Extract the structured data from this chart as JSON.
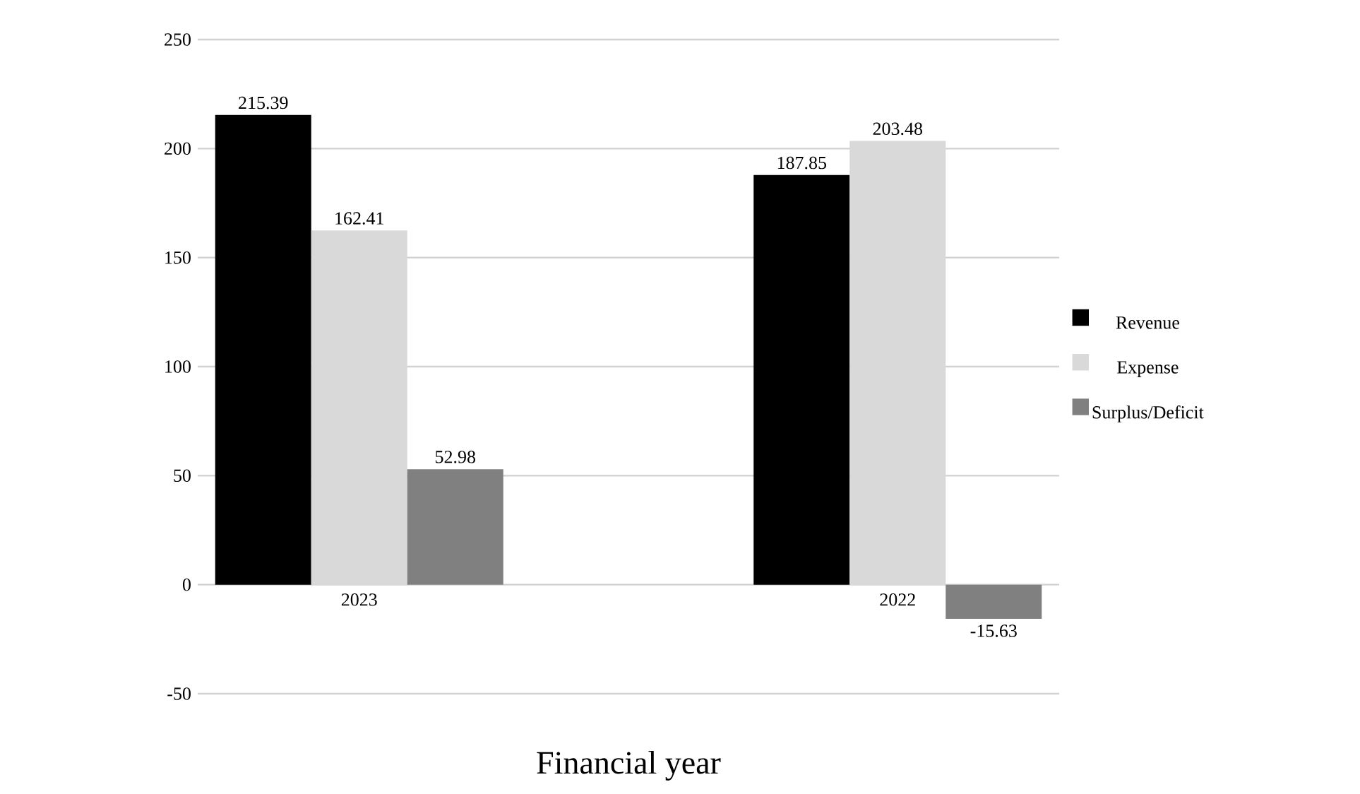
{
  "chart_data": {
    "type": "bar",
    "xlabel": "Financial year",
    "categories": [
      "2023",
      "2022"
    ],
    "series": [
      {
        "name": "Revenue",
        "color": "#000000",
        "values": [
          215.39,
          187.85
        ],
        "value_labels": [
          "215.39",
          "187.85"
        ]
      },
      {
        "name": "Expense",
        "color": "#d9d9d9",
        "values": [
          162.41,
          203.48
        ],
        "value_labels": [
          "162.41",
          "203.48"
        ]
      },
      {
        "name": "Surplus/Deficit",
        "color": "#808080",
        "values": [
          52.98,
          -15.63
        ],
        "value_labels": [
          "52.98",
          "-15.63"
        ]
      }
    ],
    "ylim": [
      -50,
      250
    ],
    "yticks": [
      -50,
      0,
      50,
      100,
      150,
      200,
      250
    ],
    "grid": "y",
    "legend": "right"
  }
}
